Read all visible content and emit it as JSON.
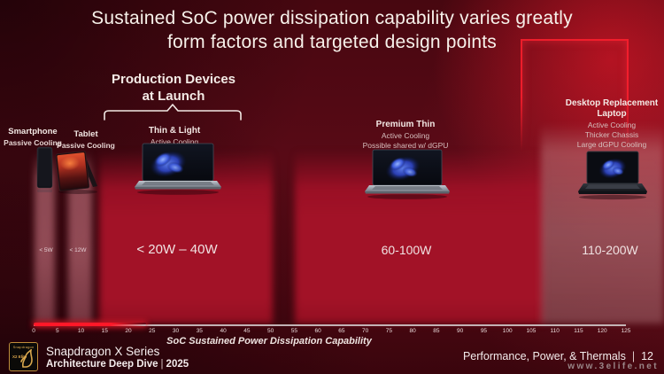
{
  "title": {
    "line1": "Sustained SoC  power dissipation capability varies greatly",
    "line2": "form factors and targeted design points"
  },
  "production_callout": {
    "line1": "Production Devices",
    "line2": "at Launch"
  },
  "categories": [
    {
      "name": "Smartphone",
      "cooling": [
        "Passive Cooling"
      ],
      "power": "< 5W"
    },
    {
      "name": "Tablet",
      "cooling": [
        "Passive Cooling"
      ],
      "power": "< 12W"
    },
    {
      "name": "Thin & Light",
      "cooling": [
        "Active Cooling"
      ],
      "power": "< 20W – 40W"
    },
    {
      "name": "Premium Thin",
      "cooling": [
        "Active Cooling",
        "Possible shared w/ dGPU"
      ],
      "power": "60-100W"
    },
    {
      "name": "Desktop Replacement Laptop",
      "cooling": [
        "Active Cooling",
        "Thicker Chassis",
        "Large dGPU Cooling"
      ],
      "power": "110-200W"
    }
  ],
  "axis": {
    "label": "SoC Sustained Power Dissipation Capability",
    "ticks": [
      0,
      5,
      10,
      15,
      20,
      25,
      30,
      35,
      40,
      45,
      50,
      55,
      60,
      65,
      70,
      75,
      80,
      85,
      90,
      95,
      100,
      105,
      110,
      115,
      120,
      125
    ]
  },
  "footer": {
    "brand": "Snapdragon X Series",
    "deck": "Architecture Deep Dive",
    "pipe": "|",
    "year": "2025",
    "section": "Performance, Power, & Thermals",
    "page": "12",
    "logo_top": "Snapdragon",
    "logo_chip": "X2 Elite"
  },
  "watermark": "www.3elife.net",
  "colors": {
    "background_dark": "#470710",
    "band_crimson": "#a21227",
    "band_pink": "#de8491",
    "band_gray_rose": "#c69196",
    "axis_highlight_red": "#ff1828",
    "title_text": "#f7f1ea",
    "logo_gold": "#c08c3a"
  },
  "chart_data": {
    "type": "bar",
    "orientation": "horizontal-range-axis",
    "title": "Sustained SoC power dissipation capability varies greatly form factors and targeted design points",
    "xlabel": "SoC Sustained Power Dissipation Capability",
    "x_unit": "W",
    "xlim": [
      0,
      125
    ],
    "x_tick_step": 5,
    "grid": false,
    "legend": false,
    "categories": [
      "Smartphone",
      "Tablet",
      "Thin & Light",
      "Premium Thin",
      "Desktop Replacement Laptop"
    ],
    "series": [
      {
        "name": "Smartphone",
        "range_watts": [
          0,
          5
        ],
        "label": "< 5W",
        "cooling": "Passive Cooling",
        "production_at_launch": true
      },
      {
        "name": "Tablet",
        "range_watts": [
          0,
          12
        ],
        "label": "< 12W",
        "cooling": "Passive Cooling",
        "production_at_launch": true
      },
      {
        "name": "Thin & Light",
        "range_watts": [
          20,
          40
        ],
        "label": "< 20W – 40W",
        "cooling": "Active Cooling",
        "production_at_launch": true
      },
      {
        "name": "Premium Thin",
        "range_watts": [
          60,
          100
        ],
        "label": "60-100W",
        "cooling": "Active Cooling, Possible shared w/ dGPU",
        "production_at_launch": false
      },
      {
        "name": "Desktop Replacement Laptop",
        "range_watts": [
          110,
          200
        ],
        "label": "110-200W",
        "cooling": "Active Cooling, Thicker Chassis, Large dGPU Cooling",
        "production_at_launch": false
      }
    ],
    "annotations": [
      {
        "text": "Production Devices at Launch",
        "applies_to": [
          "Smartphone",
          "Tablet",
          "Thin & Light"
        ]
      }
    ],
    "axis_highlight_range": [
      0,
      23
    ]
  }
}
